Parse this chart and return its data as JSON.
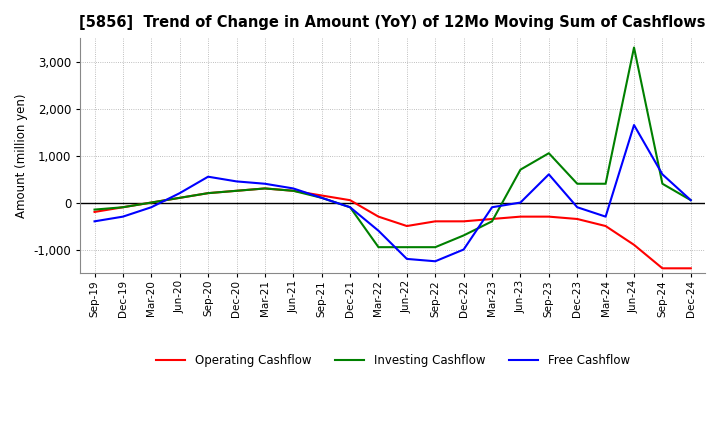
{
  "title": "[5856]  Trend of Change in Amount (YoY) of 12Mo Moving Sum of Cashflows",
  "ylabel": "Amount (million yen)",
  "ylim": [
    -1500,
    3500
  ],
  "yticks": [
    -1000,
    0,
    1000,
    2000,
    3000
  ],
  "background_color": "#ffffff",
  "plot_bg_color": "#ffffff",
  "grid_color": "#aaaaaa",
  "x_labels": [
    "Sep-19",
    "Dec-19",
    "Mar-20",
    "Jun-20",
    "Sep-20",
    "Dec-20",
    "Mar-21",
    "Jun-21",
    "Sep-21",
    "Dec-21",
    "Mar-22",
    "Jun-22",
    "Sep-22",
    "Dec-22",
    "Mar-23",
    "Jun-23",
    "Sep-23",
    "Dec-23",
    "Mar-24",
    "Jun-24",
    "Sep-24",
    "Dec-24"
  ],
  "operating_cashflow": [
    -200,
    -100,
    0,
    100,
    200,
    250,
    300,
    250,
    150,
    50,
    -300,
    -500,
    -400,
    -400,
    -350,
    -300,
    -300,
    -350,
    -500,
    -900,
    -1400,
    -1400
  ],
  "investing_cashflow": [
    -150,
    -100,
    0,
    100,
    200,
    250,
    300,
    250,
    100,
    -100,
    -950,
    -950,
    -950,
    -700,
    -400,
    700,
    1050,
    400,
    400,
    3300,
    400,
    50
  ],
  "free_cashflow": [
    -400,
    -300,
    -100,
    200,
    550,
    450,
    400,
    300,
    100,
    -100,
    -600,
    -1200,
    -1250,
    -1000,
    -100,
    0,
    600,
    -100,
    -300,
    1650,
    600,
    50
  ],
  "op_color": "#ff0000",
  "inv_color": "#008000",
  "free_color": "#0000ff",
  "legend_labels": [
    "Operating Cashflow",
    "Investing Cashflow",
    "Free Cashflow"
  ]
}
